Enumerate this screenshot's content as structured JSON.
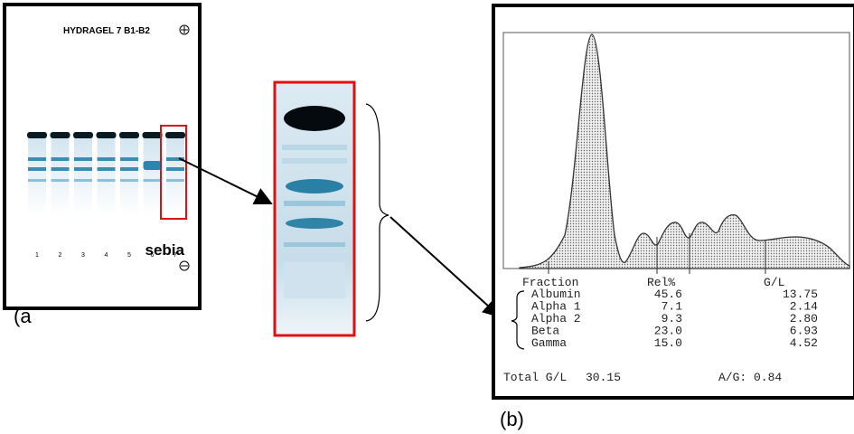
{
  "panel_a": {
    "gel_title": "HYDRAGEL 7 B1-B2",
    "lanes": [
      "1",
      "2",
      "3",
      "4",
      "5",
      "6",
      "7"
    ],
    "brand": "sebia",
    "label": "(a"
  },
  "panel_b": {
    "label": "(b)",
    "table": {
      "header": [
        "Fraction",
        "Rel%",
        "G/L"
      ],
      "rows": [
        [
          "Albumin",
          "45.6",
          "13.75"
        ],
        [
          "Alpha 1",
          "7.1",
          "2.14"
        ],
        [
          "Alpha 2",
          "9.3",
          "2.80"
        ],
        [
          "Beta",
          "23.0",
          "6.93"
        ],
        [
          "Gamma",
          "15.0",
          "4.52"
        ]
      ]
    },
    "total_label": "Total G/L",
    "total_value": "30.15",
    "ag_ratio": "A/G: 0.84"
  }
}
